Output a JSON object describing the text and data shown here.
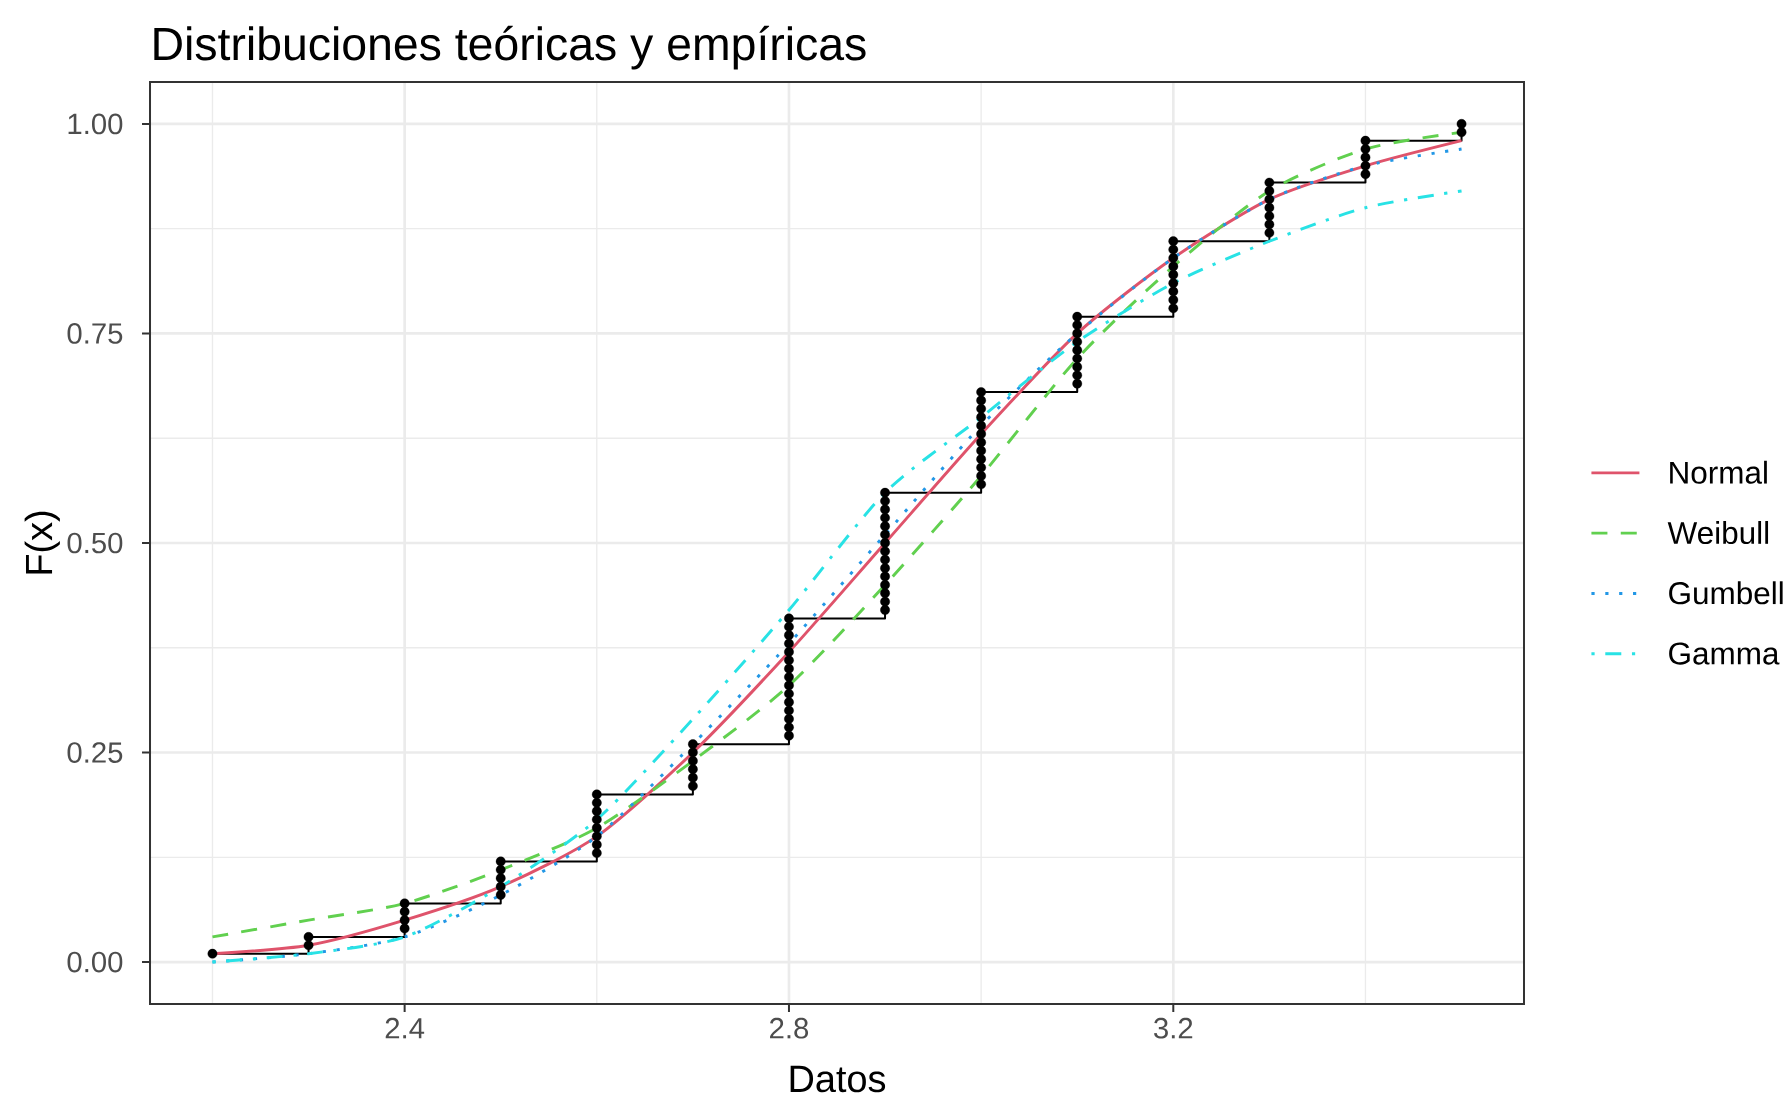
{
  "chart_data": {
    "type": "line",
    "title": "Distribuciones teóricas y empíricas",
    "xlabel": "Datos",
    "ylabel": "F(x)",
    "xlim": [
      2.135,
      3.565
    ],
    "ylim": [
      -0.05,
      1.05
    ],
    "xticks": [
      2.4,
      2.8,
      3.2
    ],
    "yticks": [
      {
        "value": 0,
        "label": "0.00"
      },
      {
        "value": 0.25,
        "label": "0.25"
      },
      {
        "value": 0.5,
        "label": "0.50"
      },
      {
        "value": 0.75,
        "label": "0.75"
      },
      {
        "value": 1,
        "label": "1.00"
      }
    ],
    "grid": true,
    "legend": "right",
    "series": [
      {
        "type": "step",
        "color": "#000000",
        "x": [
          2.2,
          2.3,
          2.4,
          2.5,
          2.6,
          2.7,
          2.8,
          2.9,
          3.0,
          3.1,
          3.2,
          3.3,
          3.4,
          3.5
        ],
        "values": [
          0.01,
          0.03,
          0.07,
          0.12,
          0.2,
          0.26,
          0.41,
          0.56,
          0.68,
          0.77,
          0.86,
          0.93,
          0.98,
          1.0
        ]
      },
      {
        "type": "scatter",
        "color": "#000000",
        "marker": "circle",
        "x": [
          2.2,
          2.3,
          2.3,
          2.4,
          2.4,
          2.4,
          2.4,
          2.5,
          2.5,
          2.5,
          2.5,
          2.5,
          2.6,
          2.6,
          2.6,
          2.6,
          2.6,
          2.6,
          2.6,
          2.6,
          2.7,
          2.7,
          2.7,
          2.7,
          2.7,
          2.7,
          2.8,
          2.8,
          2.8,
          2.8,
          2.8,
          2.8,
          2.8,
          2.8,
          2.8,
          2.8,
          2.8,
          2.8,
          2.8,
          2.8,
          2.8,
          2.9,
          2.9,
          2.9,
          2.9,
          2.9,
          2.9,
          2.9,
          2.9,
          2.9,
          2.9,
          2.9,
          2.9,
          2.9,
          2.9,
          2.9,
          3.0,
          3.0,
          3.0,
          3.0,
          3.0,
          3.0,
          3.0,
          3.0,
          3.0,
          3.0,
          3.0,
          3.0,
          3.1,
          3.1,
          3.1,
          3.1,
          3.1,
          3.1,
          3.1,
          3.1,
          3.1,
          3.2,
          3.2,
          3.2,
          3.2,
          3.2,
          3.2,
          3.2,
          3.2,
          3.2,
          3.3,
          3.3,
          3.3,
          3.3,
          3.3,
          3.3,
          3.3,
          3.4,
          3.4,
          3.4,
          3.4,
          3.4,
          3.5,
          3.5
        ],
        "values": [
          0.01,
          0.02,
          0.03,
          0.04,
          0.05,
          0.06,
          0.07,
          0.08,
          0.09,
          0.1,
          0.11,
          0.12,
          0.13,
          0.14,
          0.15,
          0.16,
          0.17,
          0.18,
          0.19,
          0.2,
          0.21,
          0.22,
          0.23,
          0.24,
          0.25,
          0.26,
          0.27,
          0.28,
          0.29,
          0.3,
          0.31,
          0.32,
          0.33,
          0.34,
          0.35,
          0.36,
          0.37,
          0.38,
          0.39,
          0.4,
          0.41,
          0.42,
          0.43,
          0.44,
          0.45,
          0.46,
          0.47,
          0.48,
          0.49,
          0.5,
          0.51,
          0.52,
          0.53,
          0.54,
          0.55,
          0.56,
          0.57,
          0.58,
          0.59,
          0.6,
          0.61,
          0.62,
          0.63,
          0.64,
          0.65,
          0.66,
          0.67,
          0.68,
          0.69,
          0.7,
          0.71,
          0.72,
          0.73,
          0.74,
          0.75,
          0.76,
          0.77,
          0.78,
          0.79,
          0.8,
          0.81,
          0.82,
          0.83,
          0.84,
          0.85,
          0.86,
          0.87,
          0.88,
          0.89,
          0.9,
          0.91,
          0.92,
          0.93,
          0.94,
          0.95,
          0.96,
          0.97,
          0.98,
          0.99,
          1.0
        ]
      },
      {
        "type": "line",
        "name": "Normal",
        "color": "#df536b",
        "line_style": "solid",
        "x": [
          2.2,
          2.3,
          2.4,
          2.5,
          2.6,
          2.7,
          2.8,
          2.9,
          3.0,
          3.1,
          3.2,
          3.3,
          3.4,
          3.5
        ],
        "values": [
          0.01,
          0.02,
          0.05,
          0.09,
          0.15,
          0.25,
          0.37,
          0.5,
          0.63,
          0.75,
          0.84,
          0.91,
          0.95,
          0.98
        ]
      },
      {
        "type": "line",
        "name": "Weibull",
        "color": "#61d04f",
        "line_style": "dashed",
        "x": [
          2.2,
          2.3,
          2.4,
          2.5,
          2.6,
          2.7,
          2.8,
          2.9,
          3.0,
          3.1,
          3.2,
          3.3,
          3.4,
          3.5
        ],
        "values": [
          0.03,
          0.05,
          0.07,
          0.11,
          0.16,
          0.24,
          0.33,
          0.45,
          0.58,
          0.72,
          0.83,
          0.92,
          0.97,
          0.99
        ]
      },
      {
        "type": "line",
        "name": "Gumbell",
        "color": "#2297e6",
        "line_style": "dotted",
        "x": [
          2.2,
          2.3,
          2.4,
          2.5,
          2.6,
          2.7,
          2.8,
          2.9,
          3.0,
          3.1,
          3.2,
          3.3,
          3.4,
          3.5
        ],
        "values": [
          0.0,
          0.01,
          0.03,
          0.08,
          0.15,
          0.26,
          0.38,
          0.51,
          0.64,
          0.75,
          0.84,
          0.91,
          0.95,
          0.97
        ]
      },
      {
        "type": "line",
        "name": "Gamma",
        "color": "#28e2e5",
        "line_style": "dashdot",
        "x": [
          2.2,
          2.3,
          2.4,
          2.5,
          2.6,
          2.7,
          2.8,
          2.9,
          3.0,
          3.1,
          3.2,
          3.3,
          3.4,
          3.5
        ],
        "values": [
          0.0,
          0.01,
          0.03,
          0.09,
          0.17,
          0.29,
          0.42,
          0.56,
          0.65,
          0.74,
          0.81,
          0.86,
          0.9,
          0.92
        ]
      }
    ]
  }
}
